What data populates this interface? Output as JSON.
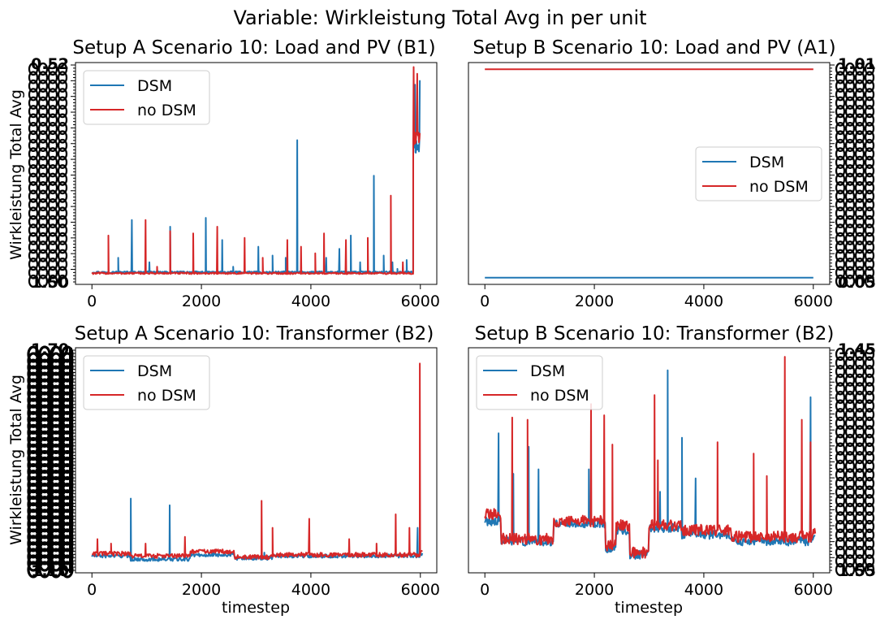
{
  "figure": {
    "suptitle": "Variable: Wirkleistung Total Avg in per unit"
  },
  "colors": {
    "dsm": "#1f77b4",
    "no_dsm": "#d62728"
  },
  "chart_data": [
    {
      "type": "line",
      "title": "Setup A Scenario 10: Load and PV (B1)",
      "xlabel": "",
      "ylabel": "Wirkleistung Total Avg",
      "xlim": [
        -300,
        6300
      ],
      "ylim": [
        0,
        1
      ],
      "xticks": [
        0,
        2000,
        4000,
        6000
      ],
      "yaxis_side": "left",
      "ytick_labels_visible": [
        "0.52",
        "1.50"
      ],
      "legend": "upper left",
      "series": [
        {
          "name": "DSM",
          "color": "#1f77b4",
          "baseline": 0.055,
          "noise": 0.004,
          "x": [
            0,
            5950
          ],
          "spikes": [
            [
              480,
              0.12
            ],
            [
              730,
              0.29
            ],
            [
              1050,
              0.1
            ],
            [
              1430,
              0.26
            ],
            [
              2080,
              0.3
            ],
            [
              2380,
              0.2
            ],
            [
              2580,
              0.08
            ],
            [
              3040,
              0.17
            ],
            [
              3300,
              0.13
            ],
            [
              3540,
              0.12
            ],
            [
              3750,
              0.65
            ],
            [
              4280,
              0.12
            ],
            [
              4520,
              0.16
            ],
            [
              4730,
              0.22
            ],
            [
              4900,
              0.1
            ],
            [
              5150,
              0.49
            ],
            [
              5330,
              0.13
            ],
            [
              5490,
              0.1
            ],
            [
              5580,
              0.07
            ],
            [
              5750,
              0.11
            ]
          ],
          "end_segment": {
            "from": 5870,
            "to": 5990,
            "level": 0.62,
            "peaks": [
              [
                5900,
                0.9
              ],
              [
                5990,
                0.92
              ]
            ]
          }
        },
        {
          "name": "no DSM",
          "color": "#d62728",
          "baseline": 0.05,
          "noise": 0.004,
          "x": [
            0,
            5950
          ],
          "spikes": [
            [
              300,
              0.22
            ],
            [
              980,
              0.29
            ],
            [
              1190,
              0.08
            ],
            [
              1430,
              0.24
            ],
            [
              1850,
              0.23
            ],
            [
              2290,
              0.26
            ],
            [
              2790,
              0.21
            ],
            [
              3120,
              0.12
            ],
            [
              3570,
              0.2
            ],
            [
              3820,
              0.17
            ],
            [
              4080,
              0.14
            ],
            [
              4240,
              0.23
            ],
            [
              4640,
              0.2
            ],
            [
              5040,
              0.21
            ],
            [
              5460,
              0.4
            ],
            [
              5680,
              0.1
            ]
          ],
          "end_segment": {
            "from": 5870,
            "to": 5990,
            "level": 0.66,
            "peaks": [
              [
                5880,
                0.98
              ],
              [
                5940,
                0.95
              ]
            ]
          }
        }
      ]
    },
    {
      "type": "line",
      "title": "Setup B Scenario 10: Load and PV (A1)",
      "xlabel": "",
      "ylabel": "",
      "xlim": [
        -300,
        6300
      ],
      "ylim": [
        0,
        1
      ],
      "xticks": [
        0,
        2000,
        4000,
        6000
      ],
      "yaxis_side": "right",
      "ytick_labels_visible": [
        "1.01",
        "0.05"
      ],
      "legend": "center right",
      "series": [
        {
          "name": "DSM",
          "color": "#1f77b4",
          "x": [
            0,
            6000
          ],
          "y": [
            0.03,
            0.03
          ]
        },
        {
          "name": "no DSM",
          "color": "#d62728",
          "x": [
            0,
            6000
          ],
          "y": [
            0.97,
            0.97
          ]
        }
      ]
    },
    {
      "type": "line",
      "title": "Setup A Scenario 10: Transformer (B2)",
      "xlabel": "timestep",
      "ylabel": "Wirkleistung Total Avg",
      "xlim": [
        -300,
        6300
      ],
      "ylim": [
        0,
        1
      ],
      "xticks": [
        0,
        2000,
        4000,
        6000
      ],
      "yaxis_side": "left",
      "ytick_labels_visible": [
        "1.70",
        "1.10"
      ],
      "legend": "upper left",
      "series": [
        {
          "name": "DSM",
          "color": "#1f77b4",
          "levels": [
            [
              0,
              0.075
            ],
            [
              700,
              0.06
            ],
            [
              1800,
              0.08
            ],
            [
              2600,
              0.065
            ],
            [
              3300,
              0.075
            ],
            [
              6000,
              0.08
            ]
          ],
          "noise": 0.008,
          "spikes": [
            [
              710,
              0.33
            ],
            [
              1420,
              0.3
            ],
            [
              3150,
              0.09
            ],
            [
              5950,
              0.2
            ]
          ]
        },
        {
          "name": "no DSM",
          "color": "#d62728",
          "levels": [
            [
              0,
              0.085
            ],
            [
              700,
              0.075
            ],
            [
              1800,
              0.095
            ],
            [
              2600,
              0.07
            ],
            [
              3300,
              0.08
            ],
            [
              6000,
              0.09
            ]
          ],
          "noise": 0.01,
          "spikes": [
            [
              100,
              0.15
            ],
            [
              350,
              0.13
            ],
            [
              980,
              0.13
            ],
            [
              1700,
              0.16
            ],
            [
              3100,
              0.32
            ],
            [
              3300,
              0.2
            ],
            [
              3970,
              0.24
            ],
            [
              4700,
              0.15
            ],
            [
              5200,
              0.13
            ],
            [
              5550,
              0.26
            ],
            [
              5800,
              0.2
            ],
            [
              5990,
              0.93
            ]
          ]
        }
      ]
    },
    {
      "type": "line",
      "title": "Setup B Scenario 10: Transformer (B2)",
      "xlabel": "timestep",
      "ylabel": "",
      "xlim": [
        -300,
        6300
      ],
      "ylim": [
        0,
        1
      ],
      "xticks": [
        0,
        2000,
        4000,
        6000
      ],
      "yaxis_side": "right",
      "ytick_labels_visible": [
        "1.45",
        "1.55"
      ],
      "legend": "upper left",
      "series": [
        {
          "name": "DSM",
          "color": "#1f77b4",
          "levels": [
            [
              0,
              0.23
            ],
            [
              300,
              0.14
            ],
            [
              1250,
              0.22
            ],
            [
              2200,
              0.1
            ],
            [
              2400,
              0.19
            ],
            [
              2650,
              0.08
            ],
            [
              3000,
              0.2
            ],
            [
              3600,
              0.17
            ],
            [
              4500,
              0.14
            ],
            [
              6000,
              0.17
            ]
          ],
          "noise": 0.02,
          "spikes": [
            [
              250,
              0.62
            ],
            [
              520,
              0.44
            ],
            [
              800,
              0.56
            ],
            [
              980,
              0.46
            ],
            [
              1900,
              0.46
            ],
            [
              3200,
              0.36
            ],
            [
              3340,
              0.9
            ],
            [
              3600,
              0.6
            ],
            [
              3850,
              0.42
            ],
            [
              5950,
              0.78
            ]
          ]
        },
        {
          "name": "no DSM",
          "color": "#d62728",
          "levels": [
            [
              0,
              0.26
            ],
            [
              300,
              0.15
            ],
            [
              1250,
              0.23
            ],
            [
              2200,
              0.12
            ],
            [
              2400,
              0.21
            ],
            [
              2650,
              0.09
            ],
            [
              3000,
              0.21
            ],
            [
              3600,
              0.19
            ],
            [
              4500,
              0.16
            ],
            [
              6000,
              0.18
            ]
          ],
          "noise": 0.025,
          "spikes": [
            [
              500,
              0.69
            ],
            [
              780,
              0.68
            ],
            [
              1940,
              0.75
            ],
            [
              2180,
              0.7
            ],
            [
              2330,
              0.57
            ],
            [
              3100,
              0.79
            ],
            [
              3160,
              0.5
            ],
            [
              4250,
              0.58
            ],
            [
              4910,
              0.53
            ],
            [
              5150,
              0.43
            ],
            [
              5480,
              0.96
            ],
            [
              5790,
              0.68
            ],
            [
              5950,
              0.58
            ]
          ]
        }
      ]
    }
  ]
}
